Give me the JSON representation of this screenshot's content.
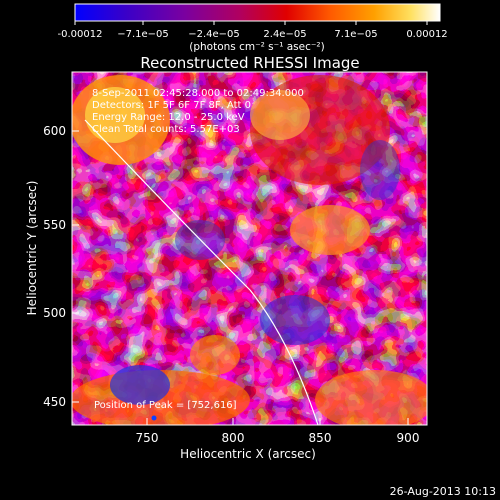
{
  "colorbar": {
    "colors": [
      "#0000ff",
      "#3a00c8",
      "#7a00a0",
      "#b00060",
      "#e00000",
      "#ff5a00",
      "#ffa000",
      "#ffe060",
      "#ffffff"
    ],
    "tick_labels": [
      "-0.00012",
      "−7.1e−05",
      "−2.4e−05",
      "2.4e−05",
      "7.1e−05",
      "0.00012"
    ],
    "units_label": "(photons cm⁻² s⁻¹ asec⁻²)"
  },
  "plot": {
    "title": "Reconstructed RHESSI Image",
    "xlabel": "Heliocentric X (arcsec)",
    "ylabel": "Heliocentric Y (arcsec)",
    "x_ticks": [
      "750",
      "800",
      "850",
      "900"
    ],
    "y_ticks": [
      "450",
      "500",
      "550",
      "600"
    ],
    "annotations": [
      "8-Sep-2011 02:45:28.000 to 02:49:34.000",
      "Detectors: 1F 5F 6F 7F 8F, Att 0",
      "Energy Range: 12.0 - 25.0 keV",
      "Clean     Total counts: 5.57E+03"
    ],
    "peak_label": "Position of Peak = [752,616]"
  },
  "footer": {
    "date": "26-Aug-2013 10:13"
  }
}
